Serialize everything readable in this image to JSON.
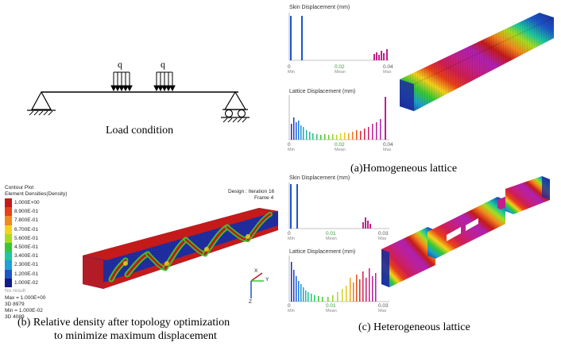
{
  "load_diagram": {
    "load_label_1": "q",
    "load_label_2": "q",
    "caption": "Load condition"
  },
  "homogeneous": {
    "skin_title": "Skin Displacement (mm)",
    "lattice_title": "Lattice Displacement (mm)",
    "skin_axis": {
      "min": "0",
      "mean": "0.02",
      "max": "0.04",
      "min_label": "Min",
      "mean_label": "Mean",
      "max_label": "Max"
    },
    "lattice_axis": {
      "min": "0",
      "mean": "0.02",
      "max": "0.04",
      "min_label": "Min",
      "mean_label": "Mean",
      "max_label": "Max"
    },
    "caption": "(a)Homogeneous lattice"
  },
  "topology": {
    "contour_title": "Contour Plot",
    "contour_subtitle": "Element Densities(Density)",
    "legend": [
      {
        "label": "1.000E+00",
        "color": "#c41a1a"
      },
      {
        "label": "8.900E-01",
        "color": "#e8401a"
      },
      {
        "label": "7.800E-01",
        "color": "#f2891c"
      },
      {
        "label": "6.700E-01",
        "color": "#f5d21c"
      },
      {
        "label": "5.600E-01",
        "color": "#a8dd1e"
      },
      {
        "label": "4.500E-01",
        "color": "#36c832"
      },
      {
        "label": "3.400E-01",
        "color": "#1cc89c"
      },
      {
        "label": "2.300E-01",
        "color": "#1ea0d8"
      },
      {
        "label": "1.200E-01",
        "color": "#1d56c8"
      },
      {
        "label": "1.000E-02",
        "color": "#121a8c"
      }
    ],
    "no_result": "No result",
    "max_text": "Max = 1.000E+00",
    "max_id": "3D 8979",
    "min_text": "Min = 1.000E-02",
    "min_id": "3D 4089",
    "design_iter": "Design : Iteration 16",
    "frame": "Frame 4",
    "axis_x": "X",
    "axis_y": "Y",
    "axis_z": "Z",
    "caption_line1": "(b) Relative density after topology optimization",
    "caption_line2": "to minimize maximum displacement"
  },
  "heterogeneous": {
    "skin_title": "Skin Displacement (mm)",
    "lattice_title": "Lattice Displacement (mm)",
    "skin_axis": {
      "min": "0",
      "mean": "0.01",
      "max": "0.03",
      "min_label": "Min",
      "mean_label": "Mean",
      "max_label": "Max"
    },
    "lattice_axis": {
      "min": "0",
      "mean": "0.01",
      "max": "0.03",
      "min_label": "Min",
      "mean_label": "Mean",
      "max_label": "Max"
    },
    "caption": "(c) Heterogeneous lattice"
  },
  "colors": {
    "fea_red": "#c41a1a",
    "fea_blue": "#1d2a9c",
    "fea_magenta": "#c0208c",
    "fea_green": "#3ec02e"
  }
}
